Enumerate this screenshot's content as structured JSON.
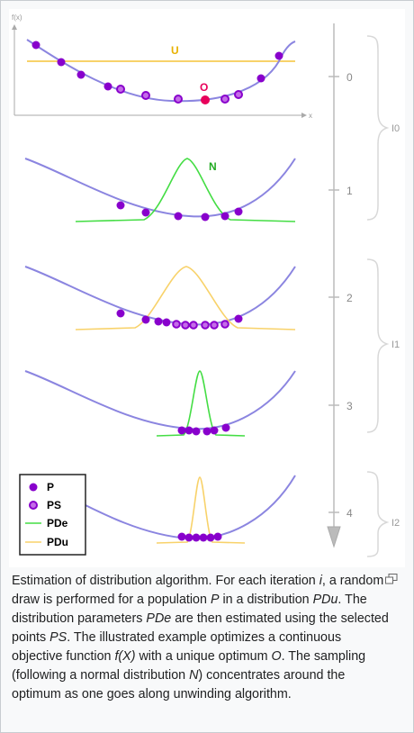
{
  "figure": {
    "y_axis_label": "f(x)",
    "x_axis_label": "x",
    "optimum_label": "O",
    "uniform_label": "U",
    "normal_label": "N",
    "timeline_ticks": [
      "0",
      "1",
      "2",
      "3",
      "4"
    ],
    "brace_labels": [
      "I0",
      "I1",
      "I2"
    ],
    "legend": [
      {
        "label": "P",
        "marker": "dot"
      },
      {
        "label": "PS",
        "marker": "ring"
      },
      {
        "label": "PDe",
        "marker": "green-line"
      },
      {
        "label": "PDu",
        "marker": "yellow-line"
      }
    ],
    "colors": {
      "curve": "#8b85e0",
      "point": "#8800cc",
      "selected_point": "#c46ce8",
      "optimum": "#e8005a",
      "pde": "#44dd44",
      "pdu": "#f8d26a",
      "axis": "#aaaaaa",
      "timeline": "#bbbbbb"
    }
  },
  "caption": {
    "parts": [
      {
        "t": "Estimation of distribution algorithm. For each iteration ",
        "i": false
      },
      {
        "t": "i",
        "i": true
      },
      {
        "t": ", a random draw is performed for a population ",
        "i": false
      },
      {
        "t": "P",
        "i": true
      },
      {
        "t": " in a distribution ",
        "i": false
      },
      {
        "t": "PDu",
        "i": true
      },
      {
        "t": ". The distribution parameters ",
        "i": false
      },
      {
        "t": "PDe",
        "i": true
      },
      {
        "t": " are then estimated using the selected points ",
        "i": false
      },
      {
        "t": "PS",
        "i": true
      },
      {
        "t": ". The illustrated example optimizes a continuous objective function ",
        "i": false
      },
      {
        "t": "f(X)",
        "i": true
      },
      {
        "t": " with a unique optimum ",
        "i": false
      },
      {
        "t": "O",
        "i": true
      },
      {
        "t": ". The sampling (following a normal distribution ",
        "i": false
      },
      {
        "t": "N",
        "i": true
      },
      {
        "t": ") concentrates around the optimum as one goes along unwinding algorithm.",
        "i": false
      }
    ]
  },
  "magnify_icon": "enlarge-icon"
}
